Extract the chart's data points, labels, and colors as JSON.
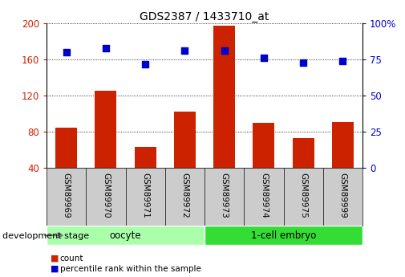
{
  "title": "GDS2387 / 1433710_at",
  "samples": [
    "GSM89969",
    "GSM89970",
    "GSM89971",
    "GSM89972",
    "GSM89973",
    "GSM89974",
    "GSM89975",
    "GSM89999"
  ],
  "counts": [
    84,
    125,
    63,
    102,
    198,
    90,
    73,
    91
  ],
  "percentile_ranks": [
    80,
    83,
    72,
    81,
    81,
    76,
    73,
    74
  ],
  "bar_color": "#cc2200",
  "dot_color": "#0000cc",
  "left_ylim": [
    40,
    200
  ],
  "left_yticks": [
    40,
    80,
    120,
    160,
    200
  ],
  "right_ylim": [
    0,
    100
  ],
  "right_yticks": [
    0,
    25,
    50,
    75,
    100
  ],
  "right_yticklabels": [
    "0",
    "25",
    "50",
    "75",
    "100%"
  ],
  "groups": [
    {
      "label": "oocyte",
      "indices": [
        0,
        1,
        2,
        3
      ],
      "color": "#aaffaa"
    },
    {
      "label": "1-cell embryo",
      "indices": [
        4,
        5,
        6,
        7
      ],
      "color": "#33dd33"
    }
  ],
  "group_label": "development stage",
  "legend_bar_label": "count",
  "legend_dot_label": "percentile rank within the sample",
  "bar_color_hex": "#cc2200",
  "dot_color_hex": "#0000cc",
  "grid_color": "#000000",
  "background_color": "#ffffff",
  "tick_label_bg": "#cccccc"
}
